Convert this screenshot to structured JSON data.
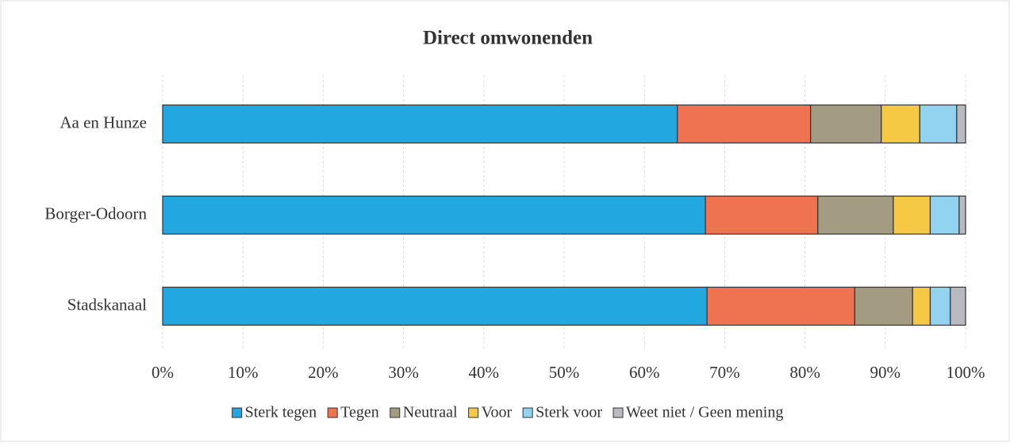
{
  "chart_data": {
    "type": "stacked_barh",
    "title": "Direct omwonenden",
    "categories": [
      "Aa en Hunze",
      "Borger-Odoorn",
      "Stadskanaal"
    ],
    "series": [
      {
        "name": "Sterk tegen",
        "color": "#22a7e0",
        "values": [
          64.1,
          67.6,
          67.8
        ]
      },
      {
        "name": "Tegen",
        "color": "#ef7251",
        "values": [
          16.6,
          14.0,
          18.4
        ]
      },
      {
        "name": "Neutraal",
        "color": "#a39c82",
        "values": [
          8.8,
          9.4,
          7.2
        ]
      },
      {
        "name": "Voor",
        "color": "#f6c945",
        "values": [
          4.8,
          4.6,
          2.2
        ]
      },
      {
        "name": "Sterk voor",
        "color": "#92d4f0",
        "values": [
          4.6,
          3.6,
          2.5
        ]
      },
      {
        "name": "Weet niet / Geen mening",
        "color": "#b9b9c2",
        "values": [
          1.1,
          0.8,
          1.9
        ]
      }
    ],
    "xlim": [
      0,
      100
    ],
    "xticks": [
      {
        "value": 0,
        "label": "0%"
      },
      {
        "value": 10,
        "label": "10%"
      },
      {
        "value": 20,
        "label": "20%"
      },
      {
        "value": 30,
        "label": "30%"
      },
      {
        "value": 40,
        "label": "40%"
      },
      {
        "value": 50,
        "label": "50%"
      },
      {
        "value": 60,
        "label": "60%"
      },
      {
        "value": 70,
        "label": "70%"
      },
      {
        "value": 80,
        "label": "80%"
      },
      {
        "value": 90,
        "label": "90%"
      },
      {
        "value": 100,
        "label": "100%"
      }
    ],
    "grid": true,
    "legend": "bottom"
  }
}
